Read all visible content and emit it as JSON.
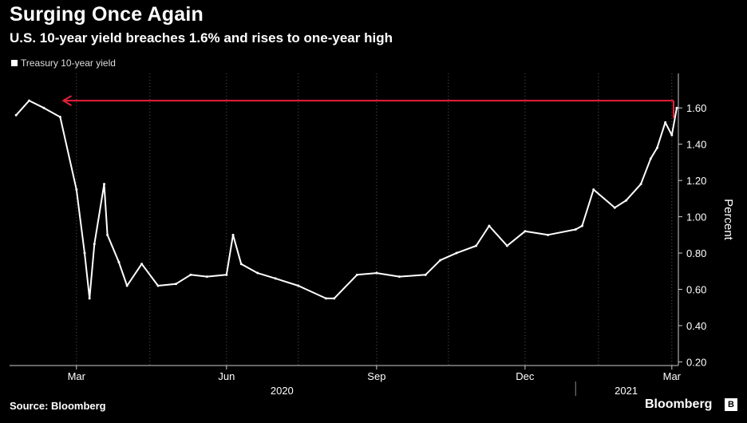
{
  "header": {
    "title": "Surging Once Again",
    "subtitle": "U.S. 10-year yield breaches 1.6% and rises to one-year high"
  },
  "legend": {
    "label": "Treasury 10-year yield",
    "color": "#ffffff"
  },
  "footer": {
    "source": "Source: Bloomberg",
    "brand": "Bloomberg",
    "brand_icon": "B"
  },
  "chart_data": {
    "type": "line",
    "title": "Surging Once Again",
    "subtitle": "U.S. 10-year yield breaches 1.6% and rises to one-year high",
    "ylabel": "Percent",
    "xlabel": "",
    "ylim": [
      0.18,
      1.79
    ],
    "ytick_values": [
      0.2,
      0.4,
      0.6,
      0.8,
      1.0,
      1.2,
      1.4,
      1.6
    ],
    "ytick_labels": [
      "0.20",
      "0.40",
      "0.60",
      "0.80",
      "1.00",
      "1.20",
      "1.40",
      "1.60"
    ],
    "xtick_labels": [
      "Mar",
      "Jun",
      "Sep",
      "Dec",
      "Mar"
    ],
    "year_labels": [
      "2020",
      "2021"
    ],
    "grid": "vertical dotted",
    "legend_position": "top-left",
    "series": [
      {
        "name": "Treasury 10-year yield",
        "color": "#ffffff",
        "x": [
          "2020-01-24",
          "2020-02-01",
          "2020-02-10",
          "2020-02-20",
          "2020-03-01",
          "2020-03-06",
          "2020-03-09",
          "2020-03-12",
          "2020-03-18",
          "2020-03-20",
          "2020-03-27",
          "2020-04-01",
          "2020-04-10",
          "2020-04-20",
          "2020-05-01",
          "2020-05-10",
          "2020-05-20",
          "2020-06-01",
          "2020-06-05",
          "2020-06-10",
          "2020-06-20",
          "2020-07-01",
          "2020-07-15",
          "2020-08-01",
          "2020-08-06",
          "2020-08-20",
          "2020-09-01",
          "2020-09-15",
          "2020-10-01",
          "2020-10-10",
          "2020-10-20",
          "2020-11-01",
          "2020-11-09",
          "2020-11-20",
          "2020-12-01",
          "2020-12-15",
          "2021-01-01",
          "2021-01-05",
          "2021-01-12",
          "2021-01-25",
          "2021-02-01",
          "2021-02-10",
          "2021-02-16",
          "2021-02-20",
          "2021-02-25",
          "2021-03-01",
          "2021-03-04"
        ],
        "y": [
          1.56,
          1.64,
          1.6,
          1.55,
          1.15,
          0.8,
          0.55,
          0.85,
          1.18,
          0.9,
          0.75,
          0.62,
          0.74,
          0.62,
          0.63,
          0.68,
          0.67,
          0.68,
          0.9,
          0.74,
          0.69,
          0.66,
          0.62,
          0.55,
          0.55,
          0.68,
          0.69,
          0.67,
          0.68,
          0.76,
          0.8,
          0.84,
          0.95,
          0.84,
          0.92,
          0.9,
          0.93,
          0.95,
          1.15,
          1.05,
          1.09,
          1.18,
          1.32,
          1.38,
          1.52,
          1.45,
          1.6
        ]
      }
    ],
    "annotation": {
      "type": "horizontal-arrow",
      "value": 1.64,
      "color": "#e8213a",
      "direction": "left"
    }
  }
}
